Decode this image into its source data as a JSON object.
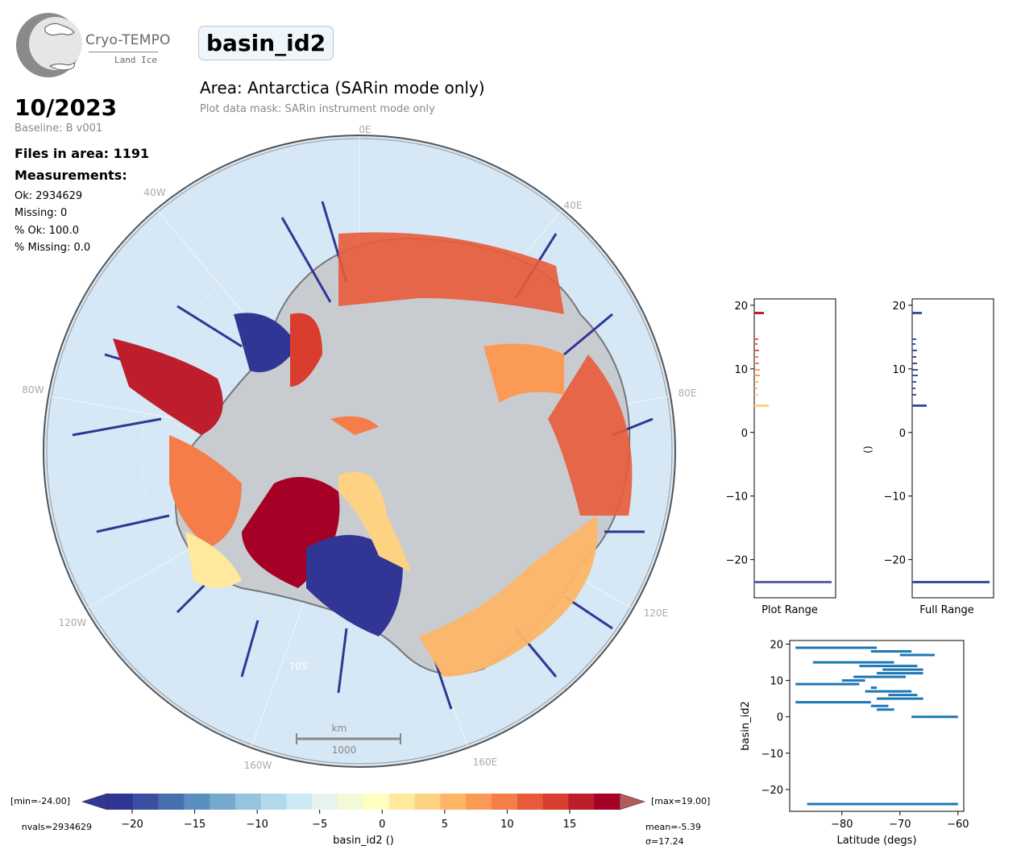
{
  "logo": {
    "brand": "Cryo-TEMPO",
    "product": "Land Ice"
  },
  "header": {
    "variable": "basin_id2",
    "area_title": "Area: Antarctica (SARin mode only)",
    "mask_note": "Plot data mask: SARin instrument mode only"
  },
  "info": {
    "date": "10/2023",
    "baseline": "Baseline: B v001",
    "files": "Files in area: 1191",
    "measurements_heading": "Measurements:",
    "ok": "Ok: 2934629",
    "missing": "Missing: 0",
    "pct_ok": "% Ok: 100.0",
    "pct_missing": "% Missing: 0.0"
  },
  "map": {
    "meridian_labels": [
      "0E",
      "40E",
      "80E",
      "120E",
      "160E",
      "160W",
      "120W",
      "80W",
      "40W"
    ],
    "parallel_label": "70S",
    "scalebar_unit": "km",
    "scalebar_value": "1000",
    "colors": {
      "ocean": "#d6e7f5",
      "ice": "#c8ccd0",
      "track": "#313695"
    }
  },
  "colorbar": {
    "min_label": "[min=-24.00]",
    "max_label": "[max=19.00]",
    "nvals_label": "nvals=2934629",
    "mean_label": "mean=-5.39",
    "sigma_label": "σ=17.24",
    "label": "basin_id2 ()",
    "ticks": [
      -20,
      -15,
      -10,
      -5,
      0,
      5,
      10,
      15
    ],
    "range": [
      -22,
      19
    ],
    "colors": [
      "#313695",
      "#3b4fa0",
      "#4670b0",
      "#5a8ec0",
      "#76a9cf",
      "#94c4df",
      "#b1d9e9",
      "#cde9f1",
      "#e6f4f0",
      "#f2f9d8",
      "#ffffbf",
      "#fee99d",
      "#fed283",
      "#fdb567",
      "#fa9a55",
      "#f57d4a",
      "#e85b3a",
      "#d83d2d",
      "#be1e2b",
      "#a50026"
    ]
  },
  "histograms": {
    "plot_range": {
      "label": "Plot Range",
      "yticks": [
        20,
        10,
        0,
        -10,
        -20
      ]
    },
    "full_range": {
      "label": "Full Range",
      "ylabel": "()",
      "yticks": [
        20,
        10,
        0,
        -10,
        -20
      ]
    }
  },
  "chart_data": {
    "type": "scatter",
    "title": "",
    "xlabel": "Latitude (degs)",
    "ylabel": "basin_id2",
    "xticks": [
      -80,
      -70,
      -60
    ],
    "yticks": [
      20,
      10,
      0,
      -10,
      -20
    ],
    "xlim": [
      -89,
      -59
    ],
    "ylim": [
      -26,
      21
    ],
    "segments": [
      {
        "y": 19,
        "x": [
          -88,
          -74
        ]
      },
      {
        "y": 18,
        "x": [
          -75,
          -68
        ]
      },
      {
        "y": 17,
        "x": [
          -70,
          -64
        ]
      },
      {
        "y": 15,
        "x": [
          -85,
          -71
        ]
      },
      {
        "y": 14,
        "x": [
          -77,
          -67
        ]
      },
      {
        "y": 13,
        "x": [
          -73,
          -66
        ]
      },
      {
        "y": 12,
        "x": [
          -74,
          -66
        ]
      },
      {
        "y": 11,
        "x": [
          -78,
          -69
        ]
      },
      {
        "y": 10,
        "x": [
          -80,
          -76
        ]
      },
      {
        "y": 9,
        "x": [
          -88,
          -77
        ]
      },
      {
        "y": 8,
        "x": [
          -75,
          -74
        ]
      },
      {
        "y": 7,
        "x": [
          -76,
          -68
        ]
      },
      {
        "y": 6,
        "x": [
          -72,
          -67
        ]
      },
      {
        "y": 5,
        "x": [
          -74,
          -66
        ]
      },
      {
        "y": 4,
        "x": [
          -88,
          -75
        ]
      },
      {
        "y": 3,
        "x": [
          -75,
          -72
        ]
      },
      {
        "y": 2,
        "x": [
          -74,
          -71
        ]
      },
      {
        "y": 0,
        "x": [
          -68,
          -66
        ]
      },
      {
        "y": 0,
        "x": [
          -66,
          -60
        ]
      },
      {
        "y": -24,
        "x": [
          -86,
          -60
        ]
      }
    ]
  }
}
